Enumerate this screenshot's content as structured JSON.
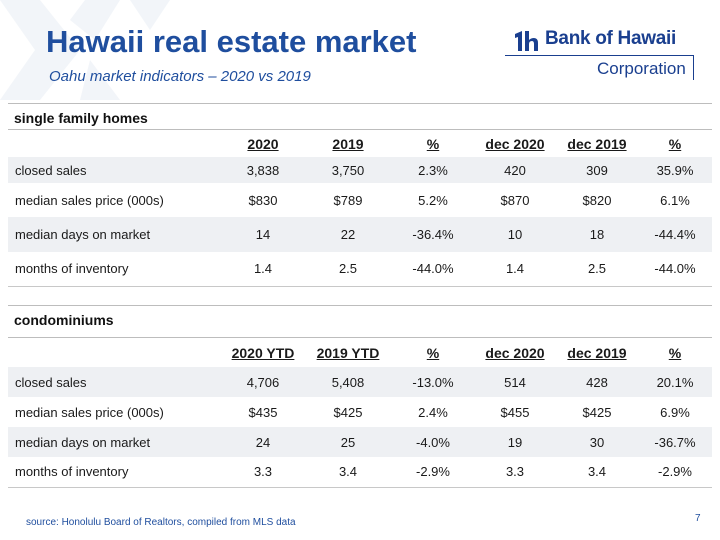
{
  "header": {
    "title": "Hawaii real estate market",
    "subtitle": "Oahu market indicators – 2020 vs 2019"
  },
  "logo": {
    "name": "Bank of Hawaii",
    "corporation": "Corporation"
  },
  "single_family": {
    "title": "single family homes",
    "columns": [
      "",
      "2020",
      "2019",
      "%",
      "dec 2020",
      "dec 2019",
      "%"
    ],
    "rows": [
      [
        "closed sales",
        "3,838",
        "3,750",
        "2.3%",
        "420",
        "309",
        "35.9%"
      ],
      [
        "median sales price (000s)",
        "$830",
        "$789",
        "5.2%",
        "$870",
        "$820",
        "6.1%"
      ],
      [
        "median days on market",
        "14",
        "22",
        "-36.4%",
        "10",
        "18",
        "-44.4%"
      ],
      [
        "months of inventory",
        "1.4",
        "2.5",
        "-44.0%",
        "1.4",
        "2.5",
        "-44.0%"
      ]
    ]
  },
  "condominiums": {
    "title": "condominiums",
    "columns": [
      "",
      "2020 YTD",
      "2019 YTD",
      "%",
      "dec 2020",
      "dec 2019",
      "%"
    ],
    "rows": [
      [
        "closed sales",
        "4,706",
        "5,408",
        "-13.0%",
        "514",
        "428",
        "20.1%"
      ],
      [
        "median sales price (000s)",
        "$435",
        "$425",
        "2.4%",
        "$455",
        "$425",
        "6.9%"
      ],
      [
        "median days on market",
        "24",
        "25",
        "-4.0%",
        "19",
        "30",
        "-36.7%"
      ],
      [
        "months of inventory",
        "3.3",
        "3.4",
        "-2.9%",
        "3.3",
        "3.4",
        "-2.9%"
      ]
    ]
  },
  "footer": {
    "source": "source:  Honolulu Board of Realtors, compiled from MLS data",
    "page_number": "7"
  },
  "colors": {
    "brand_blue": "#1f4e9e",
    "row_shade": "#eef0f3"
  }
}
